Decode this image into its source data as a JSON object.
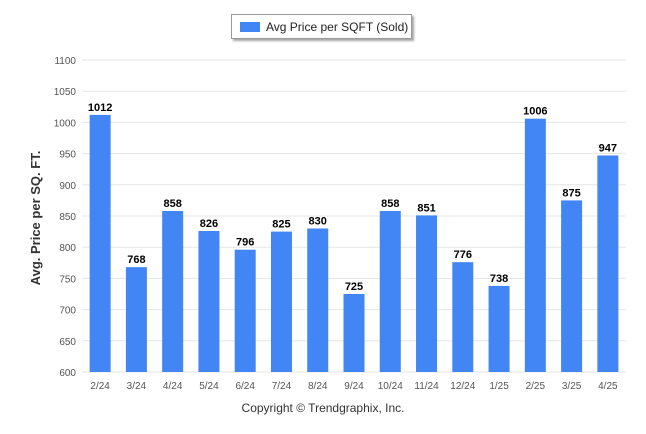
{
  "colors": {
    "bar": "#4285f4",
    "grid": "#e6e6e6",
    "axis_text": "#555555",
    "label_text": "#000000"
  },
  "legend": {
    "label": "Avg Price per SQFT (Sold)"
  },
  "footer": {
    "copyright": "Copyright © Trendgraphix, Inc."
  },
  "chart_data": {
    "type": "bar",
    "ylabel": "Avg. Price per SQ. FT.",
    "xlabel": "",
    "ylim": [
      600,
      1100
    ],
    "yticks": [
      600,
      650,
      700,
      750,
      800,
      850,
      900,
      950,
      1000,
      1050,
      1100
    ],
    "grid": true,
    "legend_position": "top-center",
    "categories": [
      "2/24",
      "3/24",
      "4/24",
      "5/24",
      "6/24",
      "7/24",
      "8/24",
      "9/24",
      "10/24",
      "11/24",
      "12/24",
      "1/25",
      "2/25",
      "3/25",
      "4/25"
    ],
    "series": [
      {
        "name": "Avg Price per SQFT (Sold)",
        "values": [
          1012,
          768,
          858,
          826,
          796,
          825,
          830,
          725,
          858,
          851,
          776,
          738,
          1006,
          875,
          947
        ]
      }
    ]
  }
}
